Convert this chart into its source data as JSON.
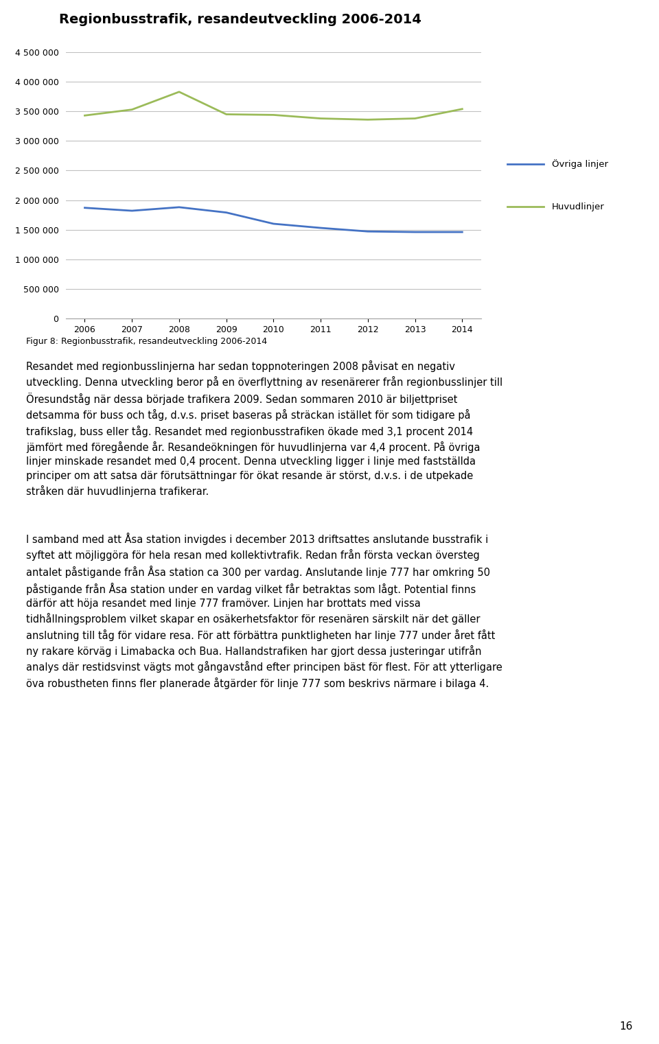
{
  "title": "Regionbusstrafik, resandeutveckling 2006-2014",
  "years": [
    2006,
    2007,
    2008,
    2009,
    2010,
    2011,
    2012,
    2013,
    2014
  ],
  "ovriga_linjer": [
    1870000,
    1820000,
    1880000,
    1790000,
    1600000,
    1530000,
    1470000,
    1460000,
    1460000
  ],
  "huvudlinjer": [
    3430000,
    3530000,
    3830000,
    3450000,
    3440000,
    3380000,
    3360000,
    3380000,
    3540000
  ],
  "ovriga_color": "#4472C4",
  "huvudlinjer_color": "#9BBB59",
  "legend_ovriga": "Övriga linjer",
  "legend_huvudlinjer": "Huvudlinjer",
  "ylim": [
    0,
    4500000
  ],
  "yticks": [
    0,
    500000,
    1000000,
    1500000,
    2000000,
    2500000,
    3000000,
    3500000,
    4000000,
    4500000
  ],
  "figcaption": "Figur 8: Regionbusstrafik, resandeutveckling 2006-2014",
  "para1": "Resandet med regionbusslinjerna har sedan toppnoteringen 2008 påvisat en negativ\nutveckling. Denna utveckling beror på en överflyttning av resenärerer från regionbusslinjer till\nÖresundståg när dessa började trafikera 2009. Sedan sommaren 2010 är biljettpriset\ndetsamma för buss och tåg, d.v.s. priset baseras på sträckan istället för som tidigare på\ntrafikslag, buss eller tåg. Resandet med regionbusstrafiken ökade med 3,1 procent 2014\njämfört med föregående år. Resandeökningen för huvudlinjerna var 4,4 procent. På övriga\nlinjer minskade resandet med 0,4 procent. Denna utveckling ligger i linje med fastställda\nprinciper om att satsa där förutsättningar för ökat resande är störst, d.v.s. i de utpekade\nstråken där huvudlinjerna trafikerar.",
  "para2": "I samband med att Åsa station invigdes i december 2013 driftsattes anslutande busstrafik i\nsyftet att möjliggöra för hela resan med kollektivtrafik. Redan från första veckan översteg\nantalet påstigande från Åsa station ca 300 per vardag. Anslutande linje 777 har omkring 50\npåstigande från Åsa station under en vardag vilket får betraktas som lågt. Potential finns\ndärför att höja resandet med linje 777 framöver. Linjen har brottats med vissa\ntidhållningsproblem vilket skapar en osäkerhetsfaktor för resenären särskilt när det gäller\nanslutning till tåg för vidare resa. För att förbättra punktligheten har linje 777 under året fått\nny rakare körväg i Limabacka och Bua. Hallandstrafiken har gjort dessa justeringar utifrån\nanalys där restidsvinst vägts mot gångavstånd efter principen bäst för flest. För att ytterligare\növa robustheten finns fler planerade åtgärder för linje 777 som beskrivs närmare i bilaga 4.",
  "page_number": "16",
  "background_color": "#ffffff",
  "grid_color": "#c0c0c0",
  "title_fontsize": 14,
  "axis_fontsize": 9,
  "text_fontsize": 10.5,
  "caption_fontsize": 9
}
